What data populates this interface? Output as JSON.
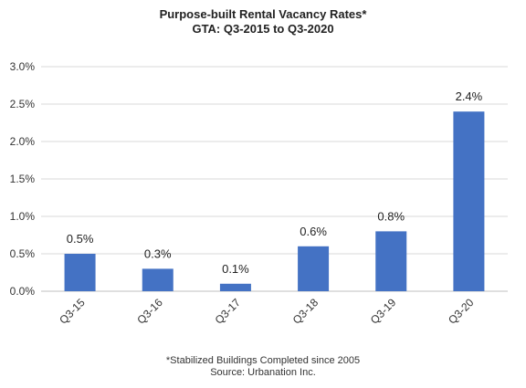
{
  "chart_data": {
    "type": "bar",
    "title": "Purpose-built Rental Vacancy Rates*",
    "subtitle": "GTA: Q3-2015 to Q3-2020",
    "categories": [
      "Q3-15",
      "Q3-16",
      "Q3-17",
      "Q3-18",
      "Q3-19",
      "Q3-20"
    ],
    "values": [
      0.5,
      0.3,
      0.1,
      0.6,
      0.8,
      2.4
    ],
    "data_labels": [
      "0.5%",
      "0.3%",
      "0.1%",
      "0.6%",
      "0.8%",
      "2.4%"
    ],
    "ylim": [
      0,
      3.0
    ],
    "yticks": [
      "0.0%",
      "0.5%",
      "1.0%",
      "1.5%",
      "2.0%",
      "2.5%",
      "3.0%"
    ],
    "grid": true,
    "bar_color": "#4472C4",
    "grid_color": "#d9d9d9",
    "footnote": "*Stabilized Buildings Completed since 2005",
    "source": "Source: Urbanation Inc."
  }
}
